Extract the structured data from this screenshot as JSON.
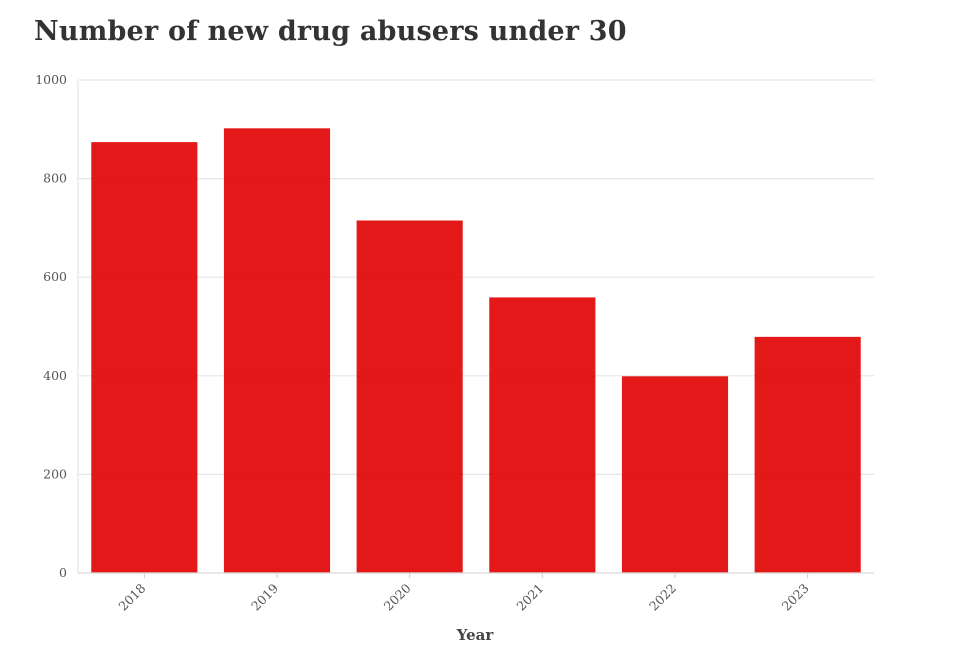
{
  "chart_data": {
    "type": "bar",
    "title": "Number of new drug abusers under 30",
    "xlabel": "Year",
    "ylabel": "",
    "categories": [
      "2018",
      "2019",
      "2020",
      "2021",
      "2022",
      "2023"
    ],
    "values": [
      874,
      902,
      715,
      559,
      399,
      479
    ],
    "ylim": [
      0,
      1000
    ],
    "yticks": [
      0,
      200,
      400,
      600,
      800,
      1000
    ],
    "grid": true,
    "legend": "none",
    "bar_color": "#e00000",
    "grid_color": "#e6e6e6"
  }
}
